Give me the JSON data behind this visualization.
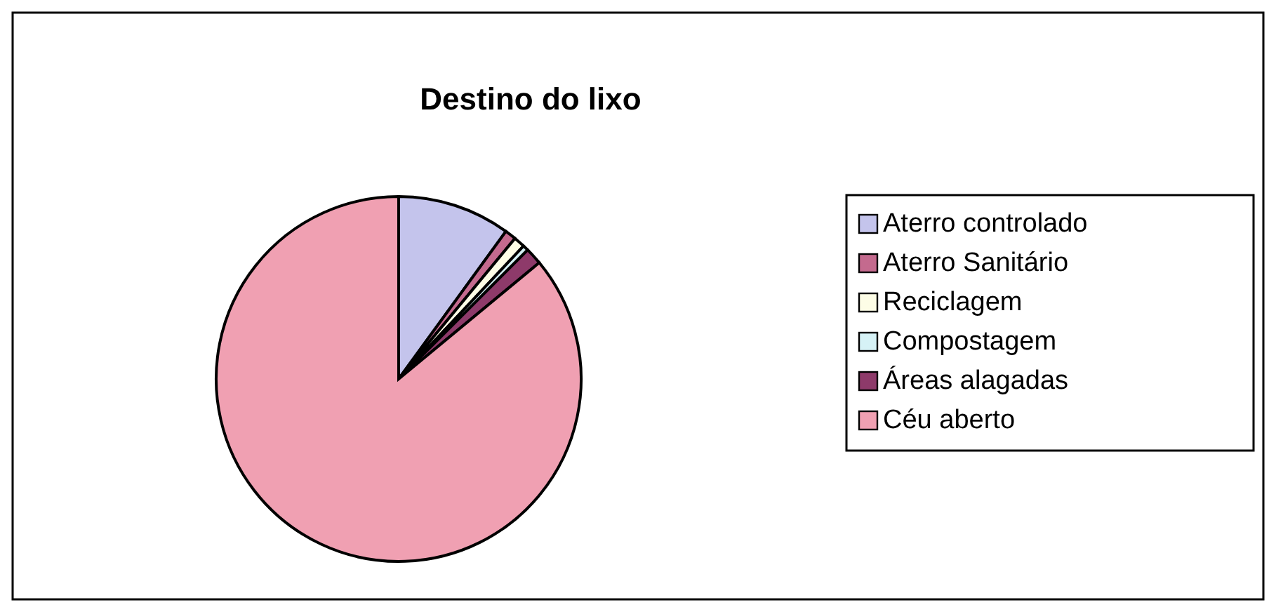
{
  "chart_data": {
    "type": "pie",
    "title": "Destino do lixo",
    "categories": [
      "Aterro controlado",
      "Aterro Sanitário",
      "Reciclagem",
      "Compostagem",
      "Áreas alagadas",
      "Céu aberto"
    ],
    "values": [
      10,
      1,
      1,
      0.5,
      1.5,
      86
    ],
    "colors": [
      "#c4c4ec",
      "#c46a8e",
      "#fdfde6",
      "#d6f2f6",
      "#8e3a6a",
      "#f0a0b2"
    ],
    "legend": "right"
  }
}
